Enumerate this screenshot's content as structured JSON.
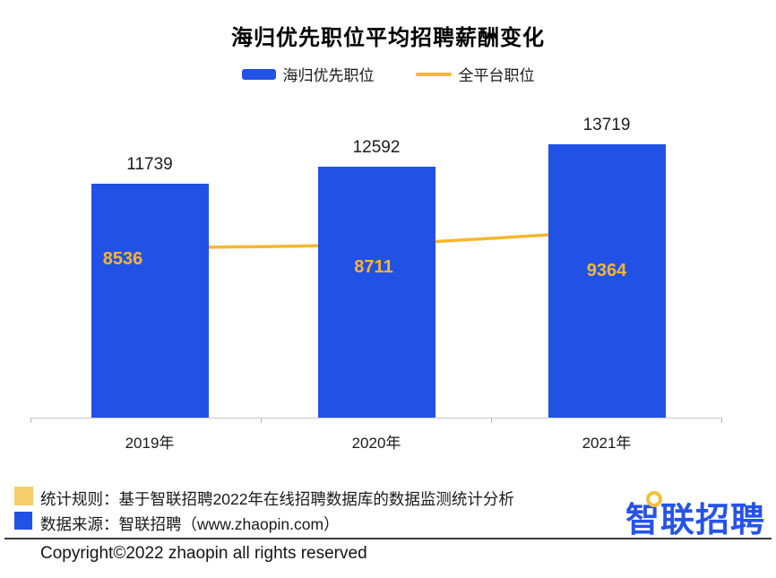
{
  "chart": {
    "title": "海归优先职位平均招聘薪酬变化",
    "legend": {
      "bar_label": "海归优先职位",
      "line_label": "全平台职位"
    }
  },
  "chart_data": {
    "type": "bar",
    "title": "海归优先职位平均招聘薪酬变化",
    "categories": [
      "2019年",
      "2020年",
      "2021年"
    ],
    "series": [
      {
        "name": "海归优先职位",
        "type": "bar",
        "color": "#2251E6",
        "values": [
          11739,
          12592,
          13719
        ]
      },
      {
        "name": "全平台职位",
        "type": "line",
        "color": "#F8B62D",
        "values": [
          8536,
          8711,
          9364
        ]
      }
    ],
    "xlabel": "",
    "ylabel": "",
    "ylim": [
      0,
      14500
    ],
    "grid": false,
    "legend_position": "top",
    "value_labels_shown": true
  },
  "footer": {
    "note1": "统计规则：基于智联招聘2022年在线招聘数据库的数据监测统计分析",
    "note2": "数据来源：智联招聘（www.zhaopin.com）",
    "note1_swatch_color": "#F7CD6A",
    "note2_swatch_color": "#2251E6",
    "logo_text": "智联招聘",
    "copyright": "Copyright©2022 zhaopin all rights reserved"
  },
  "colors": {
    "bar_blue": "#2251E6",
    "line_amber": "#F8B62D",
    "bar_inner_label": "#F7B52E",
    "axis_gray": "#C9C9C9",
    "logo_blue": "#2653E9",
    "logo_dot_yellow": "#F2C13D"
  }
}
